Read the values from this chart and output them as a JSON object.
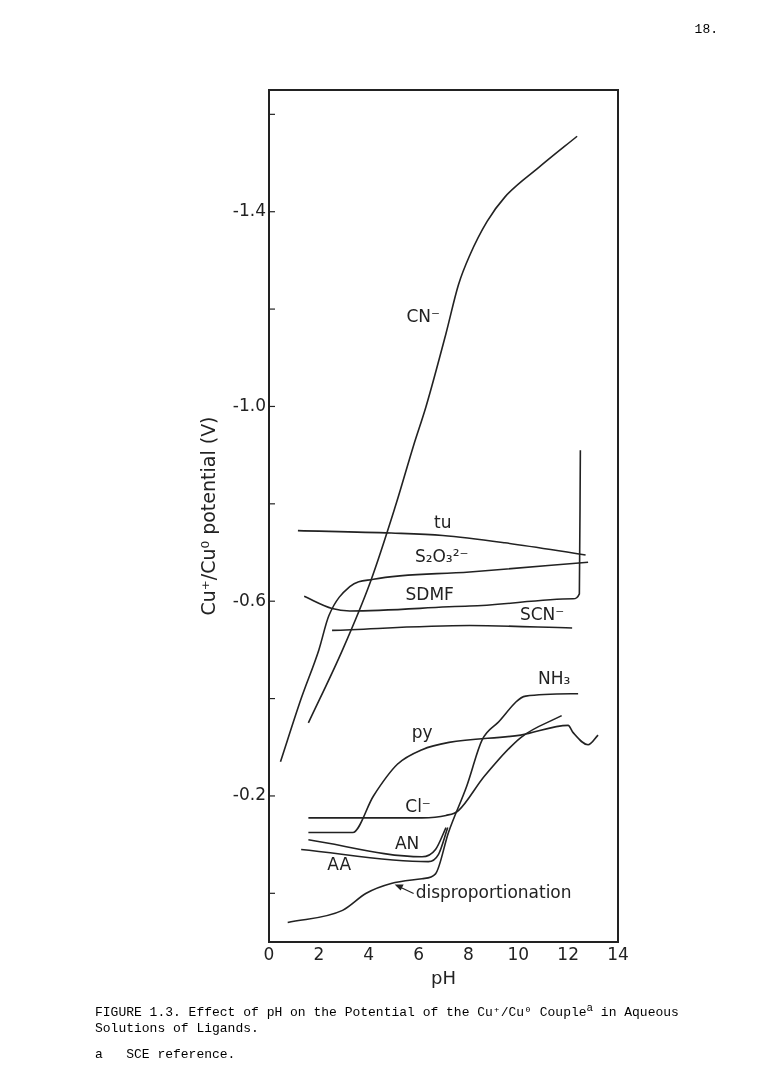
{
  "chart_data": {
    "type": "line",
    "title": "FIGURE 1.3.  Effect of pH on the Potential of the Cu⁺/Cu⁰ Couple$^{a}$ in Aqueous Solutions of Ligands.",
    "xlabel": "pH",
    "ylabel": "Cu⁺/Cu⁰ potential (V)",
    "xlim": [
      0,
      14
    ],
    "xticks": [
      0,
      2,
      4,
      6,
      8,
      10,
      12,
      14
    ],
    "ylim": [
      0.1,
      -1.65
    ],
    "yticks": [
      {
        "value": 0,
        "label": null
      },
      {
        "value": -0.2,
        "label": "-0.2"
      },
      {
        "value": -0.4,
        "label": null
      },
      {
        "value": -0.6,
        "label": "-0.6"
      },
      {
        "value": -0.8,
        "label": null
      },
      {
        "value": -1.0,
        "label": "-1.0"
      },
      {
        "value": -1.2,
        "label": null
      },
      {
        "value": -1.4,
        "label": "-1.4"
      },
      {
        "value": -1.6,
        "label": null
      }
    ],
    "grid": false,
    "legend": false,
    "marker": "none",
    "line_style": "solid",
    "series": [
      {
        "name": "CN⁻",
        "color": "#222222",
        "x": [
          1.58,
          2.95,
          4.07,
          5.1,
          5.8,
          6.3,
          7.1,
          7.6,
          8.05,
          8.75,
          9.46,
          10.8,
          12.36
        ],
        "values": [
          -0.35,
          -0.5,
          -0.64,
          -0.8,
          -0.92,
          -1.0,
          -1.15,
          -1.25,
          -1.31,
          -1.38,
          -1.43,
          -1.49,
          -1.555
        ]
      },
      {
        "name": "tu",
        "color": "#222222",
        "x": [
          1.16,
          4.9,
          6.97,
          9.46,
          12.7
        ],
        "values": [
          -0.745,
          -0.74,
          -0.735,
          -0.72,
          -0.695
        ]
      },
      {
        "name": "S₂O₃²⁻",
        "color": "#222222",
        "x": [
          0.46,
          1.29,
          2.0,
          2.4,
          3.24,
          4.19,
          8.05,
          12.8
        ],
        "values": [
          -0.27,
          -0.4,
          -0.5,
          -0.57,
          -0.63,
          -0.645,
          -0.66,
          -0.68
        ]
      },
      {
        "name": "SDMF",
        "color": "#222222",
        "x": [
          1.41,
          2.53,
          3.24,
          8.05,
          12.2,
          12.45,
          12.49
        ],
        "values": [
          -0.61,
          -0.585,
          -0.58,
          -0.59,
          -0.605,
          -0.615,
          -0.91
        ]
      },
      {
        "name": "SCN⁻",
        "color": "#222222",
        "x": [
          2.53,
          8.05,
          12.16
        ],
        "values": [
          -0.54,
          -0.55,
          -0.545
        ]
      },
      {
        "name": "NH₃",
        "color": "#222222",
        "x": [
          0.75,
          2.95,
          3.9,
          4.9,
          6.14,
          6.68,
          7.2,
          7.93,
          8.55,
          9.17,
          10.3,
          12.4
        ],
        "values": [
          0.06,
          0.035,
          0,
          -0.02,
          -0.03,
          -0.04,
          -0.125,
          -0.22,
          -0.315,
          -0.35,
          -0.405,
          -0.41
        ]
      },
      {
        "name": "py",
        "color": "#222222",
        "x": [
          1.58,
          3.36,
          4.19,
          5.15,
          6.14,
          7.22,
          10.1,
          12.0,
          12.2,
          12.8,
          13.2
        ],
        "values": [
          -0.125,
          -0.125,
          -0.2,
          -0.265,
          -0.295,
          -0.31,
          -0.325,
          -0.345,
          -0.33,
          -0.305,
          -0.325
        ]
      },
      {
        "name": "Cl⁻",
        "color": "#222222",
        "x": [
          1.58,
          6.14,
          7.1,
          7.6,
          8.63,
          10.1,
          11.74
        ],
        "values": [
          -0.155,
          -0.155,
          -0.16,
          -0.17,
          -0.24,
          -0.32,
          -0.365
        ]
      },
      {
        "name": "AN",
        "color": "#222222",
        "x": [
          1.58,
          6.14,
          6.68,
          7.1
        ],
        "values": [
          -0.11,
          -0.075,
          -0.09,
          -0.135
        ]
      },
      {
        "name": "AA",
        "color": "#222222",
        "x": [
          1.29,
          6.39,
          6.8,
          7.17
        ],
        "values": [
          -0.09,
          -0.065,
          -0.08,
          -0.135
        ]
      }
    ],
    "annotations": [
      {
        "text": "disproportionation",
        "x": 5.0,
        "y": -0.02
      },
      "a   SCE reference.",
      "18."
    ]
  }
}
